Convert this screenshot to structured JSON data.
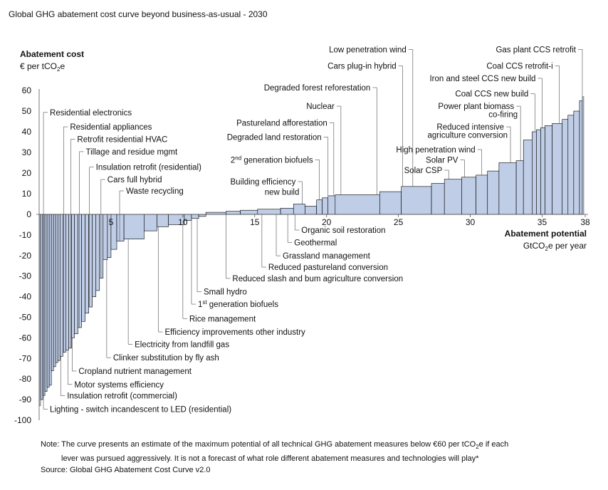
{
  "title": "Global GHG abatement cost curve beyond business-as-usual - 2030",
  "chart_data": {
    "type": "bar",
    "subtype": "marginal abatement cost curve (variable-width bars)",
    "title": "Global GHG abatement cost curve beyond business-as-usual - 2030",
    "ylabel": "Abatement cost",
    "ylabel_unit": "€ per tCO2e",
    "xlabel": "Abatement potential",
    "xlabel_unit": "GtCO2e per year",
    "xlim": [
      0,
      38
    ],
    "ylim": [
      -100,
      60
    ],
    "x_ticks": [
      5,
      10,
      15,
      20,
      25,
      30,
      35,
      38
    ],
    "y_ticks": [
      60,
      50,
      40,
      30,
      20,
      10,
      0,
      -10,
      -20,
      -30,
      -40,
      -50,
      -60,
      -70,
      -80,
      -90,
      -100
    ],
    "bar_fill": "#bfcde6",
    "bar_edge": "#000000",
    "bars": [
      {
        "x0": 0.0,
        "x1": 0.1,
        "y": -93
      },
      {
        "x0": 0.1,
        "x1": 0.25,
        "y": -90
      },
      {
        "x0": 0.25,
        "x1": 0.4,
        "y": -88
      },
      {
        "x0": 0.4,
        "x1": 0.55,
        "y": -86
      },
      {
        "x0": 0.55,
        "x1": 0.7,
        "y": -84
      },
      {
        "x0": 0.7,
        "x1": 0.85,
        "y": -83
      },
      {
        "x0": 0.85,
        "x1": 1.0,
        "y": -76
      },
      {
        "x0": 1.0,
        "x1": 1.15,
        "y": -74
      },
      {
        "x0": 1.15,
        "x1": 1.3,
        "y": -72
      },
      {
        "x0": 1.3,
        "x1": 1.45,
        "y": -71
      },
      {
        "x0": 1.45,
        "x1": 1.65,
        "y": -69
      },
      {
        "x0": 1.65,
        "x1": 1.85,
        "y": -67
      },
      {
        "x0": 1.85,
        "x1": 2.05,
        "y": -66
      },
      {
        "x0": 2.05,
        "x1": 2.25,
        "y": -65
      },
      {
        "x0": 2.25,
        "x1": 2.45,
        "y": -60
      },
      {
        "x0": 2.45,
        "x1": 2.7,
        "y": -58
      },
      {
        "x0": 2.7,
        "x1": 2.95,
        "y": -55
      },
      {
        "x0": 2.95,
        "x1": 3.2,
        "y": -52
      },
      {
        "x0": 3.2,
        "x1": 3.45,
        "y": -48
      },
      {
        "x0": 3.45,
        "x1": 3.7,
        "y": -45
      },
      {
        "x0": 3.7,
        "x1": 3.95,
        "y": -40
      },
      {
        "x0": 3.95,
        "x1": 4.2,
        "y": -37
      },
      {
        "x0": 4.2,
        "x1": 4.45,
        "y": -31
      },
      {
        "x0": 4.45,
        "x1": 4.75,
        "y": -22
      },
      {
        "x0": 4.75,
        "x1": 5.0,
        "y": -21
      },
      {
        "x0": 5.0,
        "x1": 5.4,
        "y": -17
      },
      {
        "x0": 5.4,
        "x1": 5.9,
        "y": -13
      },
      {
        "x0": 5.9,
        "x1": 7.3,
        "y": -12
      },
      {
        "x0": 7.3,
        "x1": 8.2,
        "y": -8
      },
      {
        "x0": 8.2,
        "x1": 9.0,
        "y": -6
      },
      {
        "x0": 9.0,
        "x1": 10.1,
        "y": -5
      },
      {
        "x0": 10.1,
        "x1": 10.6,
        "y": -3
      },
      {
        "x0": 10.6,
        "x1": 11.1,
        "y": -2
      },
      {
        "x0": 11.1,
        "x1": 11.6,
        "y": -1
      },
      {
        "x0": 11.6,
        "x1": 13.0,
        "y": 1
      },
      {
        "x0": 13.0,
        "x1": 14.0,
        "y": 1.5
      },
      {
        "x0": 14.0,
        "x1": 15.2,
        "y": 2
      },
      {
        "x0": 15.2,
        "x1": 16.8,
        "y": 2.5
      },
      {
        "x0": 16.8,
        "x1": 17.7,
        "y": 3
      },
      {
        "x0": 17.7,
        "x1": 18.5,
        "y": 5
      },
      {
        "x0": 18.5,
        "x1": 19.3,
        "y": 4
      },
      {
        "x0": 19.3,
        "x1": 19.7,
        "y": 7
      },
      {
        "x0": 19.7,
        "x1": 20.1,
        "y": 8
      },
      {
        "x0": 20.1,
        "x1": 20.6,
        "y": 9
      },
      {
        "x0": 20.6,
        "x1": 23.7,
        "y": 9.5
      },
      {
        "x0": 23.7,
        "x1": 25.2,
        "y": 11
      },
      {
        "x0": 25.2,
        "x1": 27.3,
        "y": 13.5
      },
      {
        "x0": 27.3,
        "x1": 28.2,
        "y": 15
      },
      {
        "x0": 28.2,
        "x1": 29.4,
        "y": 17
      },
      {
        "x0": 29.4,
        "x1": 30.4,
        "y": 18
      },
      {
        "x0": 30.4,
        "x1": 31.2,
        "y": 19
      },
      {
        "x0": 31.2,
        "x1": 32.0,
        "y": 21
      },
      {
        "x0": 32.0,
        "x1": 33.2,
        "y": 25
      },
      {
        "x0": 33.2,
        "x1": 33.7,
        "y": 26
      },
      {
        "x0": 33.7,
        "x1": 34.3,
        "y": 36
      },
      {
        "x0": 34.3,
        "x1": 34.6,
        "y": 40
      },
      {
        "x0": 34.6,
        "x1": 34.9,
        "y": 41
      },
      {
        "x0": 34.9,
        "x1": 35.2,
        "y": 42
      },
      {
        "x0": 35.2,
        "x1": 35.7,
        "y": 43
      },
      {
        "x0": 35.7,
        "x1": 36.4,
        "y": 44
      },
      {
        "x0": 36.4,
        "x1": 36.8,
        "y": 46
      },
      {
        "x0": 36.8,
        "x1": 37.2,
        "y": 48
      },
      {
        "x0": 37.2,
        "x1": 37.6,
        "y": 50
      },
      {
        "x0": 37.6,
        "x1": 37.8,
        "y": 55
      },
      {
        "x0": 37.8,
        "x1": 37.9,
        "y": 57
      }
    ],
    "annotations_above": [
      {
        "text": "Residential electronics",
        "x": 0.3,
        "y_label": 48
      },
      {
        "text": "Residential appliances",
        "x": 1.7,
        "y_label": 41
      },
      {
        "text": "Retrofit residential HVAC",
        "x": 2.2,
        "y_label": 35
      },
      {
        "text": "Tillage and residue mgmt",
        "x": 2.8,
        "y_label": 29
      },
      {
        "text": "Insulation retrofit (residential)",
        "x": 3.5,
        "y_label": 21.5
      },
      {
        "text": "Cars full hybrid",
        "x": 4.3,
        "y_label": 15.5
      },
      {
        "text": "Waste recycling",
        "x": 5.6,
        "y_label": 10
      },
      {
        "text": "Building efficiency",
        "x": 18.3,
        "y_label": 14.5
      },
      {
        "text": "new build",
        "x": 18.3,
        "y_label": 9.5
      },
      {
        "text": "generation biofuels",
        "x": 19.5,
        "y_label": 25,
        "prefix": "2",
        "sup": "nd"
      },
      {
        "text": "Degraded land restoration",
        "x": 20.1,
        "y_label": 36
      },
      {
        "text": "Pastureland afforestation",
        "x": 20.5,
        "y_label": 43
      },
      {
        "text": "Nuclear",
        "x": 21.0,
        "y_label": 51
      },
      {
        "text": "Degraded forest reforestation",
        "x": 23.5,
        "y_label": 60
      },
      {
        "text": "Cars plug-in hybrid",
        "x": 25.3,
        "y_label": 70.5
      },
      {
        "text": "Low penetration wind",
        "x": 26.0,
        "y_label": 78.5
      },
      {
        "text": "Solar CSP",
        "x": 28.5,
        "y_label": 20
      },
      {
        "text": "Solar PV",
        "x": 29.6,
        "y_label": 25
      },
      {
        "text": "High penetration wind",
        "x": 30.8,
        "y_label": 30
      },
      {
        "text": "Reduced intensive",
        "x": 32.8,
        "y_label": 41
      },
      {
        "text": "agriculture conversion",
        "x": 32.8,
        "y_label": 37
      },
      {
        "text": "Power plant biomass",
        "x": 33.5,
        "y_label": 51
      },
      {
        "text": "co-firing",
        "x": 33.5,
        "y_label": 47
      },
      {
        "text": "Coal CCS new build",
        "x": 34.5,
        "y_label": 57
      },
      {
        "text": "Iron and steel CCS new build",
        "x": 35.0,
        "y_label": 64.5
      },
      {
        "text": "Coal CCS retrofit-i",
        "x": 36.2,
        "y_label": 70.5
      },
      {
        "text": "Gas plant CCS retrofit",
        "x": 37.8,
        "y_label": 78.5
      }
    ],
    "annotations_below": [
      {
        "text": "Organic soil restoration",
        "x": 17.8,
        "y_label": -9
      },
      {
        "text": "Geothermal",
        "x": 17.3,
        "y_label": -15
      },
      {
        "text": "Grassland management",
        "x": 16.5,
        "y_label": -21.5
      },
      {
        "text": "Reduced pastureland conversion",
        "x": 15.5,
        "y_label": -27
      },
      {
        "text": "Reduced slash and bum agriculture conversion",
        "x": 13.0,
        "y_label": -32.5
      },
      {
        "text": "Small hydro",
        "x": 11.0,
        "y_label": -39
      },
      {
        "text": "generation biofuels",
        "x": 10.6,
        "y_label": -45,
        "prefix": "1",
        "sup": "st"
      },
      {
        "text": "Rice management",
        "x": 10.0,
        "y_label": -52
      },
      {
        "text": "Efficiency improvements other industry",
        "x": 8.3,
        "y_label": -58.5
      },
      {
        "text": "Electricity from landfill gas",
        "x": 6.2,
        "y_label": -64.5
      },
      {
        "text": "Clinker substitution by fly ash",
        "x": 4.7,
        "y_label": -71
      },
      {
        "text": "Cropland nutrient management",
        "x": 2.3,
        "y_label": -77.5
      },
      {
        "text": "Motor systems efficiency",
        "x": 2.0,
        "y_label": -84
      },
      {
        "text": "Insulation retrofit (commercial)",
        "x": 1.5,
        "y_label": -89.5
      },
      {
        "text": "Lighting - switch incandescent to LED (residential)",
        "x": 0.3,
        "y_label": -96
      }
    ]
  },
  "note": {
    "line1": "Note: The curve presents an estimate of the maximum potential of all technical GHG abatement measures below €60 per tCO2e if each",
    "line2": "lever was pursued aggressively. It is not a forecast of what role different abatement measures and technologies will play*",
    "source": "Source: Global GHG Abatement Cost Curve v2.0"
  }
}
